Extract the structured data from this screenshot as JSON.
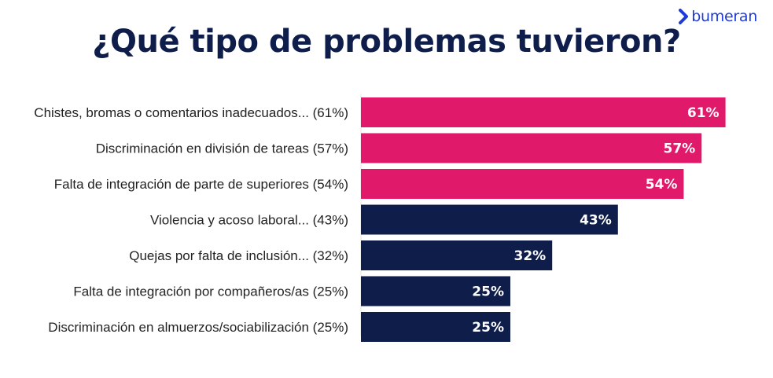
{
  "brand": {
    "name": "bumeran",
    "icon": "chevron-right-icon",
    "color": "#1d3bd6"
  },
  "title": "¿Qué tipo de problemas tuvieron?",
  "colors": {
    "highlight": "#e0196a",
    "default": "#0f1d4b",
    "title": "#0f1d4b"
  },
  "chart_data": {
    "type": "bar",
    "orientation": "horizontal",
    "title": "¿Qué tipo de problemas tuvieron?",
    "categories": [
      "Chistes, bromas o comentarios inadecuados... (61%)",
      "Discriminación en división de tareas (57%)",
      "Falta de integración de parte de superiores (54%)",
      "Violencia y acoso laboral... (43%)",
      "Quejas por falta de inclusión... (32%)",
      "Falta de integración por compañeros/as (25%)",
      "Discriminación en almuerzos/sociabilización (25%)"
    ],
    "values": [
      61,
      57,
      54,
      43,
      32,
      25,
      25
    ],
    "value_labels": [
      "61%",
      "57%",
      "54%",
      "43%",
      "32%",
      "25%",
      "25%"
    ],
    "bar_colors": [
      "#e0196a",
      "#e0196a",
      "#e0196a",
      "#0f1d4b",
      "#0f1d4b",
      "#0f1d4b",
      "#0f1d4b"
    ],
    "xlim": [
      0,
      100
    ],
    "xlabel": "",
    "ylabel": "",
    "grid": false,
    "legend": "none"
  }
}
